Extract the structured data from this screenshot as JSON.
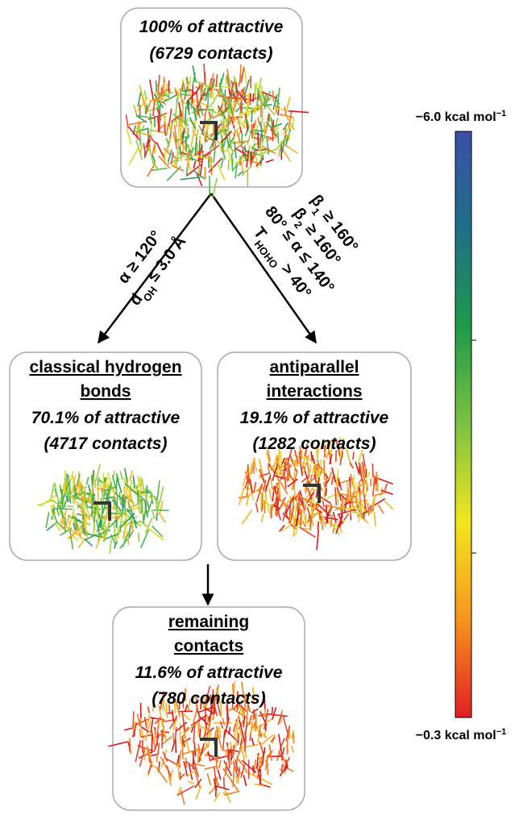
{
  "top_box": {
    "lines": [
      "100% of attractive",
      "(6729 contacts)"
    ]
  },
  "left_criteria": [
    [
      {
        "text": "α ≥ 120°"
      }
    ],
    [
      {
        "text": "d"
      },
      {
        "sub": "OH"
      },
      {
        "text": " ≤ 3.0 Å"
      }
    ]
  ],
  "right_criteria": [
    [
      {
        "text": "β"
      },
      {
        "sub": "1"
      },
      {
        "text": " ≥ 160°"
      }
    ],
    [
      {
        "text": "β"
      },
      {
        "sub": "2"
      },
      {
        "text": " ≥ 160°"
      }
    ],
    [
      {
        "text": "80° ≤ α ≤ 140°"
      }
    ],
    [
      {
        "text": "T"
      },
      {
        "sub": "HOHO"
      },
      {
        "text": " > 40°"
      }
    ]
  ],
  "left_box": {
    "title": [
      "classical hydrogen",
      "bonds"
    ],
    "lines": [
      "70.1% of attractive",
      "(4717 contacts)"
    ]
  },
  "right_box": {
    "title": [
      "antiparallel",
      "interactions"
    ],
    "lines": [
      "19.1% of attractive",
      "(1282 contacts)"
    ]
  },
  "bottom_box": {
    "title": [
      "remaining",
      "contacts"
    ],
    "lines": [
      "11.6% of attractive",
      "(780 contacts)"
    ]
  },
  "colorbar": {
    "colors": [
      "#3b4fa8",
      "#1f6f88",
      "#1e9a4a",
      "#7cc242",
      "#f2e61b",
      "#f7941d",
      "#e31e24"
    ],
    "top_label": [
      {
        "text": "−6.0 kcal mol"
      },
      {
        "sup": "−1"
      }
    ],
    "bottom_label": [
      {
        "text": "−0.3 kcal mol"
      },
      {
        "sup": "−1"
      }
    ]
  }
}
